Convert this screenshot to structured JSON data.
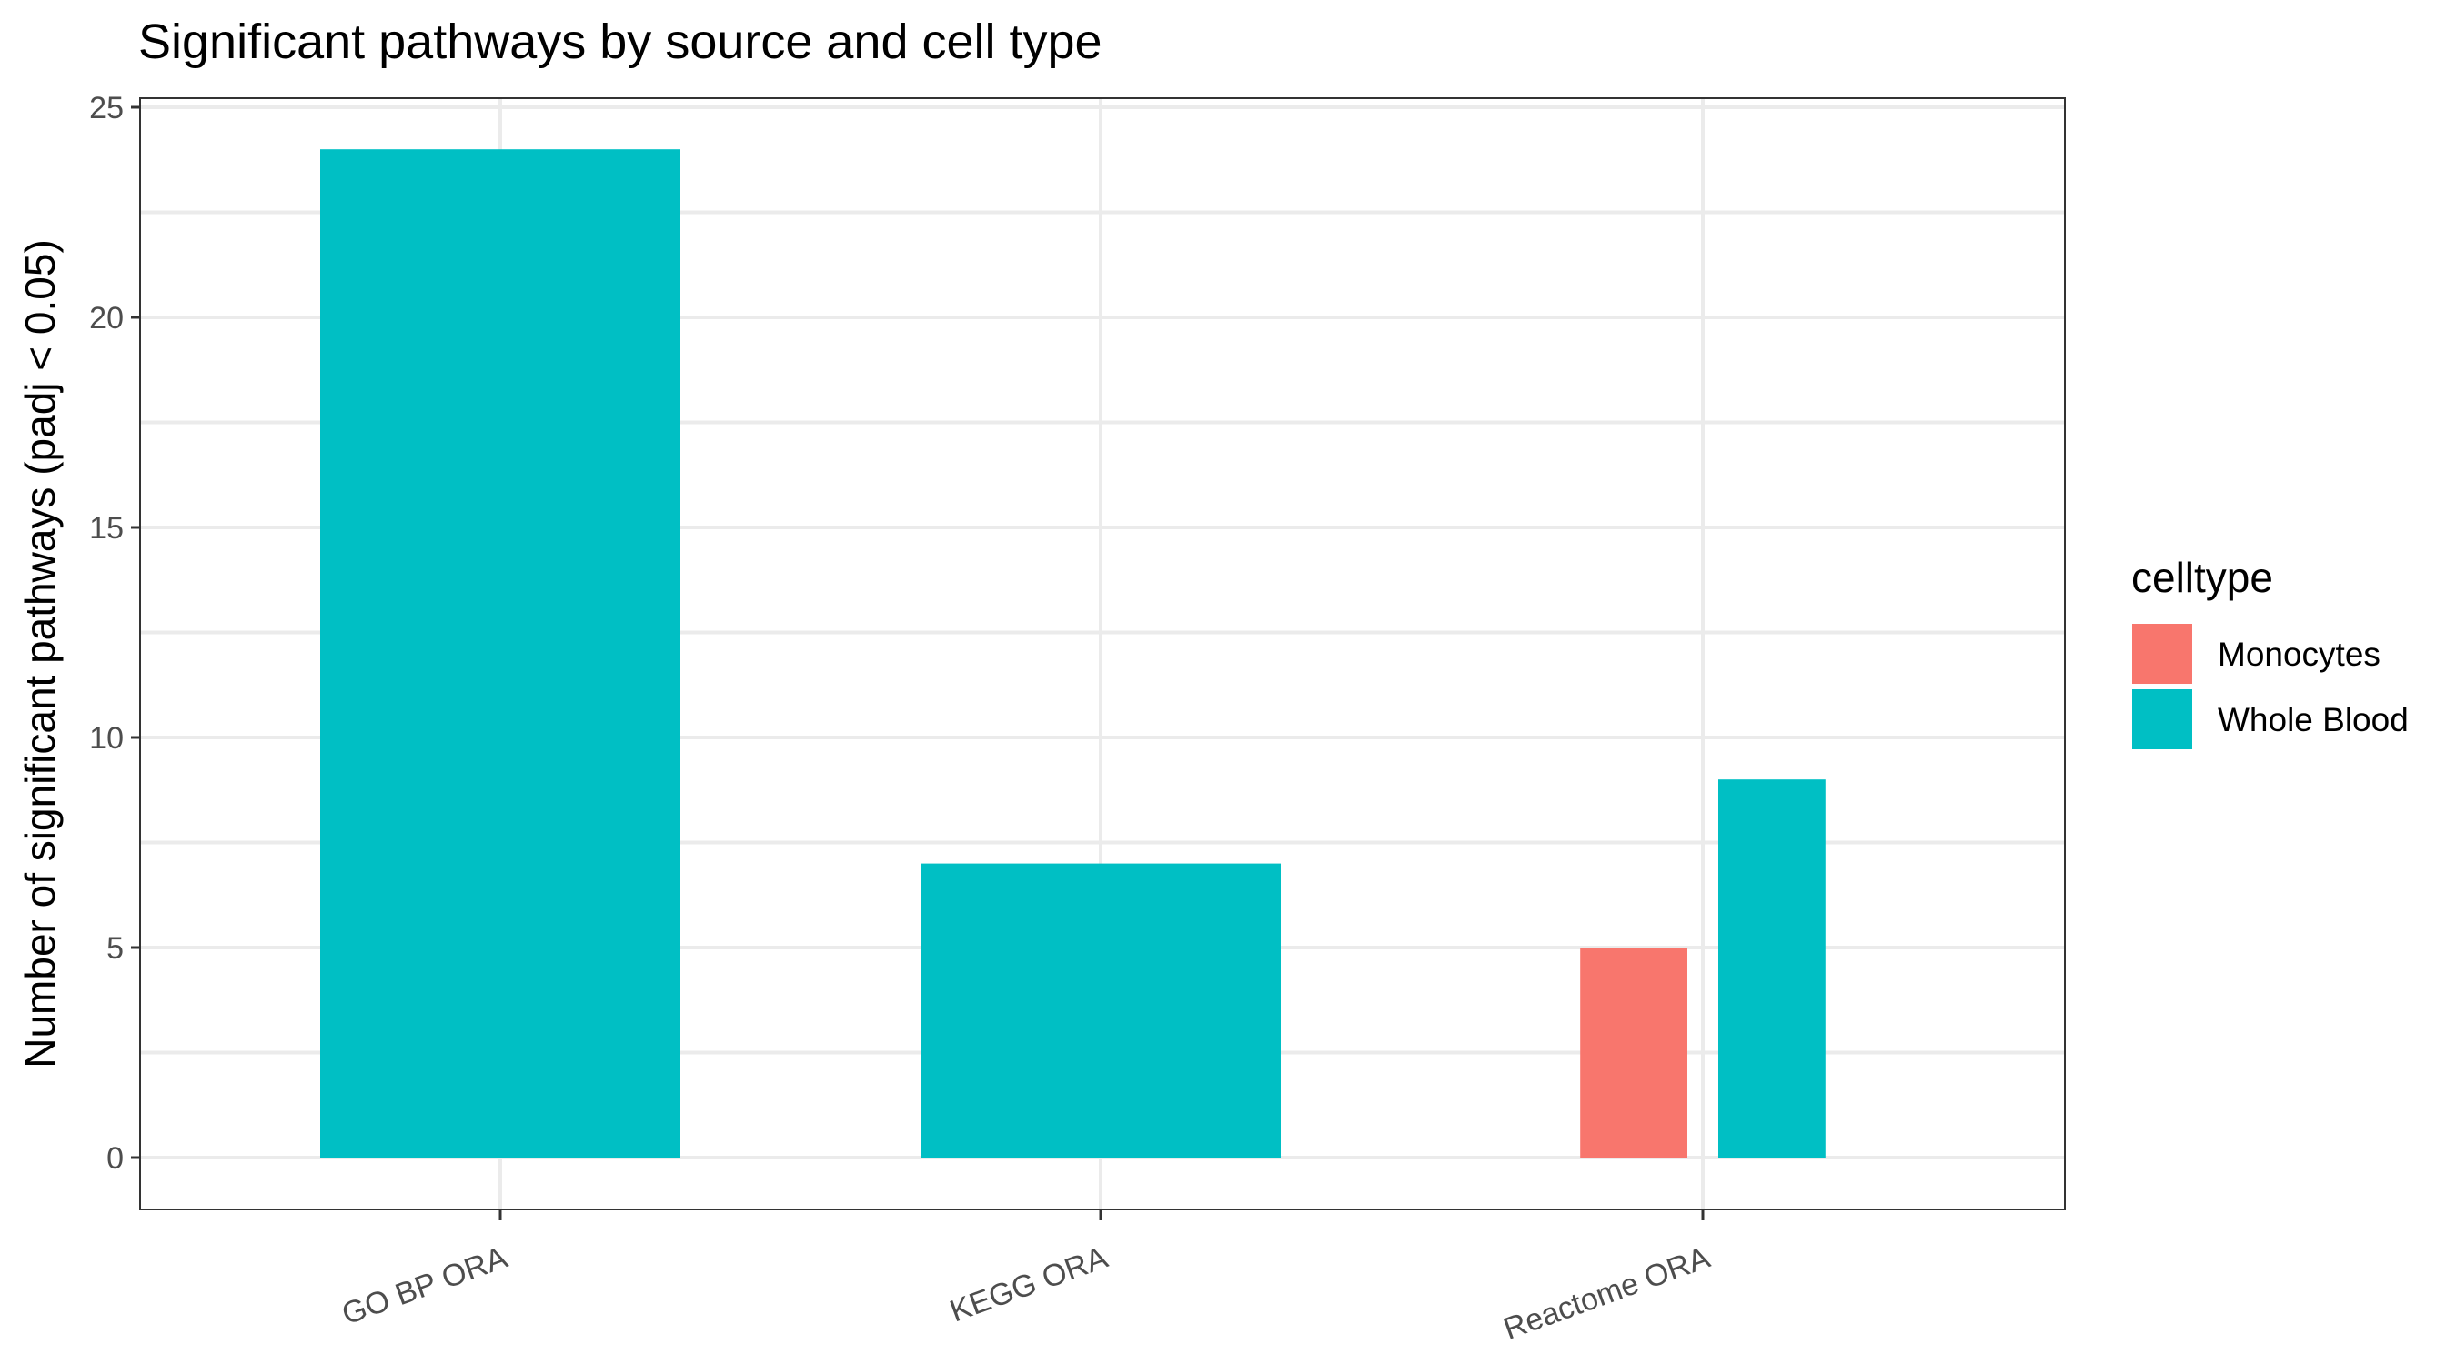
{
  "chart_data": {
    "type": "bar",
    "title": "Significant pathways by source and cell type",
    "xlabel": "",
    "ylabel": "Number of significant pathways (padj < 0.05)",
    "categories": [
      "GO BP ORA",
      "KEGG ORA",
      "Reactome ORA"
    ],
    "ylim": [
      0,
      25
    ],
    "yticks": [
      0,
      5,
      10,
      15,
      20,
      25
    ],
    "grid": true,
    "legend": {
      "title": "celltype",
      "placement": "right",
      "entries": [
        {
          "name": "Monocytes",
          "color": "#F8766D"
        },
        {
          "name": "Whole Blood",
          "color": "#00BFC4"
        }
      ]
    },
    "bars": [
      {
        "category": "GO BP ORA",
        "celltype": "Whole Blood",
        "value": 24
      },
      {
        "category": "KEGG ORA",
        "celltype": "Whole Blood",
        "value": 7
      },
      {
        "category": "Reactome ORA",
        "celltype": "Monocytes",
        "value": 5
      },
      {
        "category": "Reactome ORA",
        "celltype": "Whole Blood",
        "value": 9
      }
    ]
  }
}
